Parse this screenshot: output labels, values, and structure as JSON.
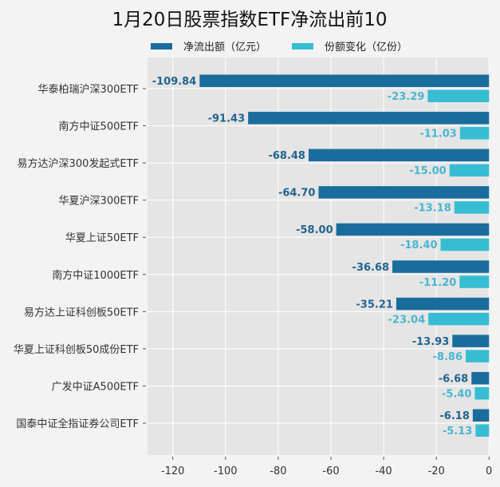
{
  "chart_data": {
    "type": "bar",
    "orientation": "horizontal",
    "title": "1月20日股票指数ETF净流出前10",
    "categories": [
      "华泰柏瑞沪深300ETF",
      "南方中证500ETF",
      "易方达沪深300发起式ETF",
      "华夏沪深300ETF",
      "华夏上证50ETF",
      "南方中证1000ETF",
      "易方达上证科创板50ETF",
      "华夏上证科创板50成份ETF",
      "广发中证A500ETF",
      "国泰中证全指证券公司ETF"
    ],
    "series": [
      {
        "name": "净流出额（亿元）",
        "color": "#1a6c9c",
        "label_color": "#22648f",
        "values": [
          -109.84,
          -91.43,
          -68.48,
          -64.7,
          -58.0,
          -36.68,
          -35.21,
          -13.93,
          -6.68,
          -6.18
        ],
        "labels": [
          "-109.84",
          "-91.43",
          "-68.48",
          "-64.70",
          "-58.00",
          "-36.68",
          "-35.21",
          "-13.93",
          "-6.68",
          "-6.18"
        ]
      },
      {
        "name": "份额变化（亿份）",
        "color": "#37bdd3",
        "label_color": "#4ab6cf",
        "values": [
          -23.29,
          -11.03,
          -15.0,
          -13.18,
          -18.4,
          -11.2,
          -23.04,
          -8.86,
          -5.4,
          -5.13
        ],
        "labels": [
          "-23.29",
          "-11.03",
          "-15.00",
          "-13.18",
          "-18.40",
          "-11.20",
          "-23.04",
          "-8.86",
          "-5.40",
          "-5.13"
        ]
      }
    ],
    "xlabel": "",
    "ylabel": "",
    "xlim": [
      -130,
      0
    ],
    "xticks": [
      -120,
      -100,
      -80,
      -60,
      -40,
      -20,
      0
    ],
    "xtick_labels": [
      "-120",
      "-100",
      "-80",
      "-60",
      "-40",
      "-20",
      "0"
    ],
    "grid": true,
    "legend_position": "top"
  }
}
